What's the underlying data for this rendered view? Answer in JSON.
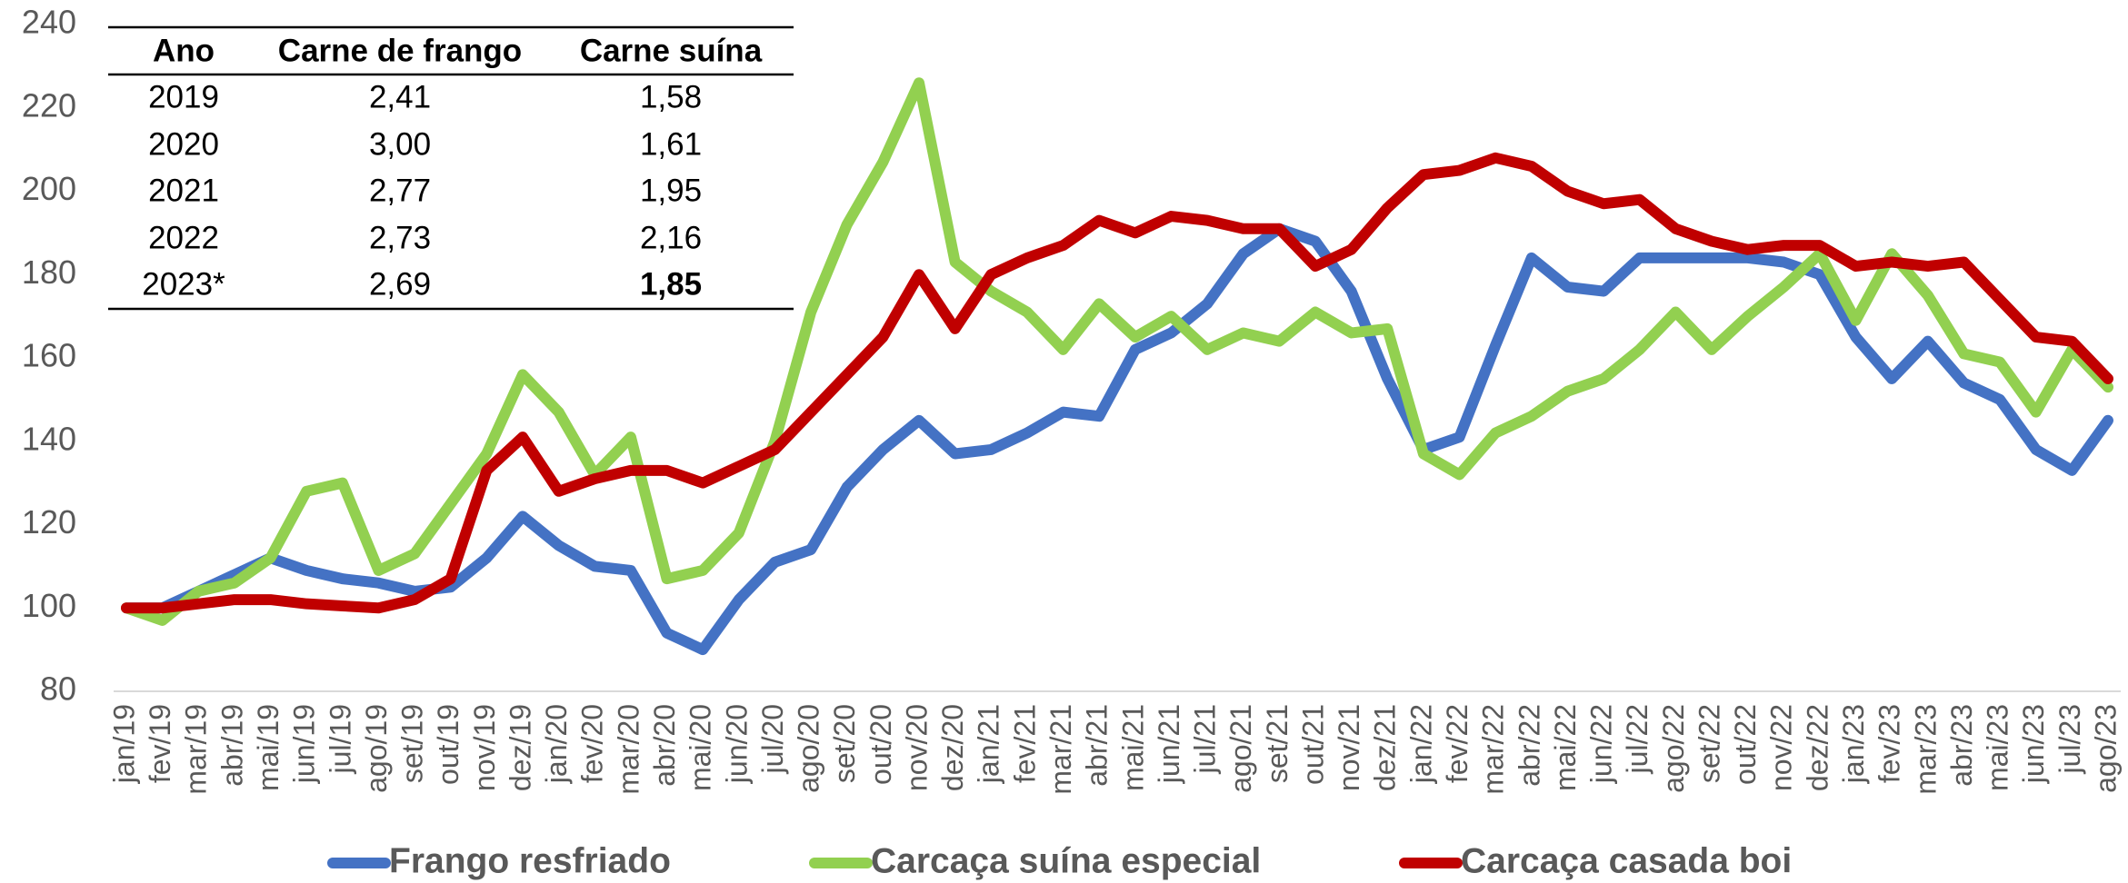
{
  "chart_data": {
    "type": "line",
    "categories": [
      "jan/19",
      "fev/19",
      "mar/19",
      "abr/19",
      "mai/19",
      "jun/19",
      "jul/19",
      "ago/19",
      "set/19",
      "out/19",
      "nov/19",
      "dez/19",
      "jan/20",
      "fev/20",
      "mar/20",
      "abr/20",
      "mai/20",
      "jun/20",
      "jul/20",
      "ago/20",
      "set/20",
      "out/20",
      "nov/20",
      "dez/20",
      "jan/21",
      "fev/21",
      "mar/21",
      "abr/21",
      "mai/21",
      "jun/21",
      "jul/21",
      "ago/21",
      "set/21",
      "out/21",
      "nov/21",
      "dez/21",
      "jan/22",
      "fev/22",
      "mar/22",
      "abr/22",
      "mai/22",
      "jun/22",
      "jul/22",
      "ago/22",
      "set/22",
      "out/22",
      "nov/22",
      "dez/22",
      "jan/23",
      "fev/23",
      "mar/23",
      "abr/23",
      "mai/23",
      "jun/23",
      "jul/23",
      "ago/23"
    ],
    "series": [
      {
        "name": "Frango resfriado",
        "color": "#4472c4",
        "values": [
          100,
          100,
          104,
          108,
          112,
          109,
          107,
          106,
          104,
          105,
          112,
          122,
          115,
          110,
          109,
          94,
          90,
          102,
          111,
          114,
          129,
          138,
          145,
          137,
          138,
          142,
          147,
          146,
          162,
          166,
          173,
          185,
          191,
          188,
          176,
          155,
          138,
          141,
          163,
          184,
          177,
          176,
          184,
          184,
          184,
          184,
          183,
          180,
          165,
          155,
          164,
          154,
          150,
          138,
          133,
          145
        ]
      },
      {
        "name": "Carcaça suína especial",
        "color": "#92d050",
        "values": [
          100,
          97,
          104,
          106,
          112,
          128,
          130,
          109,
          113,
          125,
          137,
          156,
          147,
          132,
          141,
          107,
          109,
          118,
          140,
          171,
          192,
          207,
          226,
          183,
          176,
          171,
          162,
          173,
          165,
          170,
          162,
          166,
          164,
          171,
          166,
          167,
          137,
          132,
          142,
          146,
          152,
          155,
          162,
          171,
          162,
          170,
          177,
          185,
          169,
          185,
          175,
          161,
          159,
          147,
          162,
          153
        ]
      },
      {
        "name": "Carcaça casada boi",
        "color": "#c00000",
        "values": [
          100,
          100,
          101,
          102,
          102,
          101,
          100.5,
          100,
          102,
          107,
          133,
          141,
          128,
          131,
          133,
          133,
          130,
          134,
          138,
          147,
          156,
          165,
          180,
          167,
          180,
          184,
          187,
          193,
          190,
          194,
          193,
          191,
          191,
          182,
          186,
          196,
          204,
          205,
          208,
          206,
          200,
          197,
          198,
          191,
          188,
          186,
          187,
          187,
          182,
          183,
          182,
          183,
          174,
          165,
          164,
          155
        ]
      }
    ],
    "ylim": [
      80,
      240
    ],
    "yticks": [
      80,
      100,
      120,
      140,
      160,
      180,
      200,
      220,
      240
    ],
    "grid": false,
    "table": {
      "columns": [
        "Ano",
        "Carne de frango",
        "Carne suína"
      ],
      "rows": [
        [
          "2019",
          "2,41",
          "1,58"
        ],
        [
          "2020",
          "3,00",
          "1,61"
        ],
        [
          "2021",
          "2,77",
          "1,95"
        ],
        [
          "2022",
          "2,73",
          "2,16"
        ],
        [
          "2023*",
          "2,69",
          "1,85"
        ]
      ]
    }
  }
}
